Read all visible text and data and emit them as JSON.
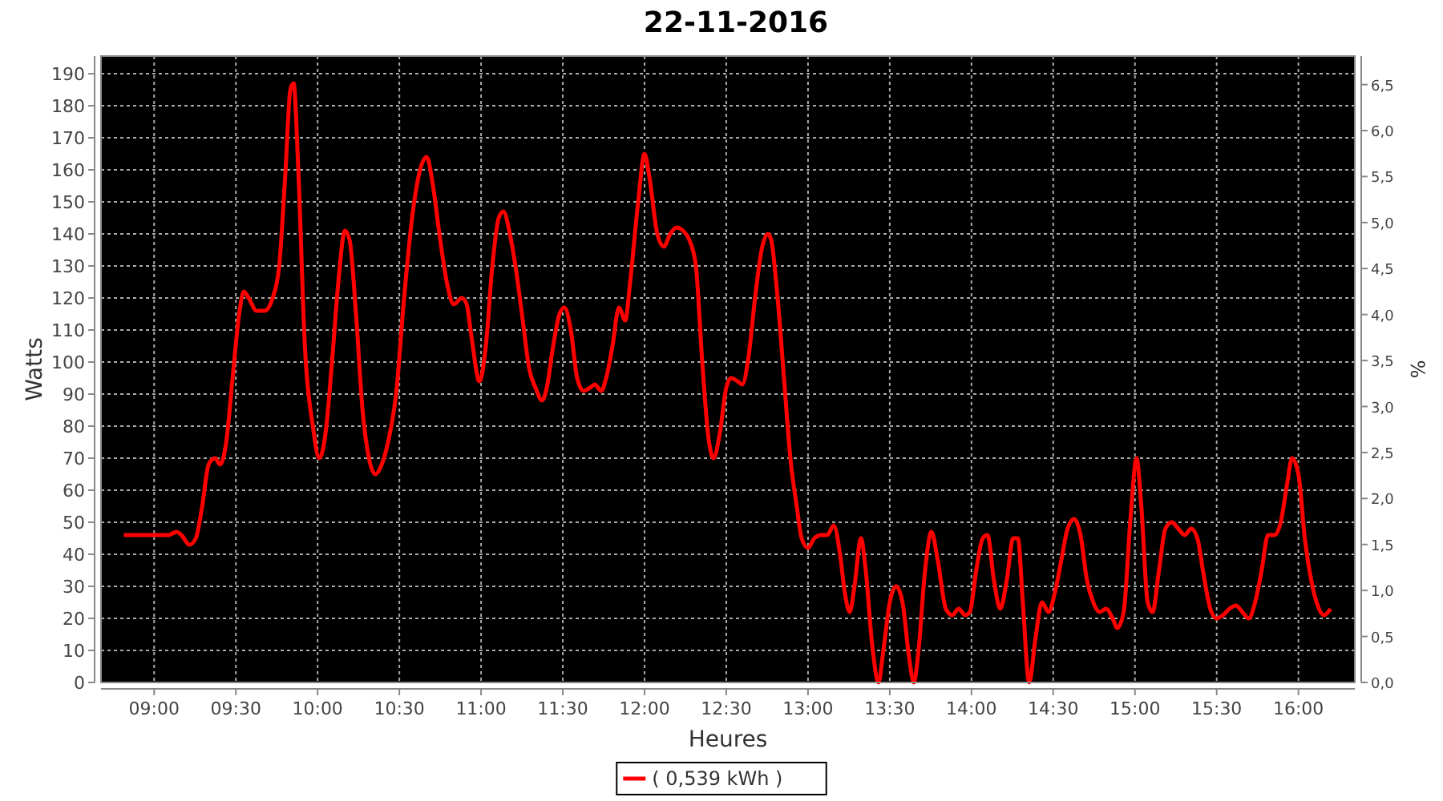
{
  "chart_data": {
    "type": "line",
    "title": "22-11-2016",
    "xlabel": "Heures",
    "ylabel": "Watts",
    "y2label": "%",
    "xlim": [
      8.675,
      16.345
    ],
    "ylim": [
      0,
      195.5
    ],
    "y2lim": [
      0,
      6.81
    ],
    "xticks": [
      {
        "value": 9,
        "label": "09:00"
      },
      {
        "value": 9.5,
        "label": "09:30"
      },
      {
        "value": 10,
        "label": "10:00"
      },
      {
        "value": 10.5,
        "label": "10:30"
      },
      {
        "value": 11,
        "label": "11:00"
      },
      {
        "value": 11.5,
        "label": "11:30"
      },
      {
        "value": 12,
        "label": "12:00"
      },
      {
        "value": 12.5,
        "label": "12:30"
      },
      {
        "value": 13,
        "label": "13:00"
      },
      {
        "value": 13.5,
        "label": "13:30"
      },
      {
        "value": 14,
        "label": "14:00"
      },
      {
        "value": 14.5,
        "label": "14:30"
      },
      {
        "value": 15,
        "label": "15:00"
      },
      {
        "value": 15.5,
        "label": "15:30"
      },
      {
        "value": 16,
        "label": "16:00"
      }
    ],
    "yticks": [
      0,
      10,
      20,
      30,
      40,
      50,
      60,
      70,
      80,
      90,
      100,
      110,
      120,
      130,
      140,
      150,
      160,
      170,
      180,
      190
    ],
    "y2ticks": [
      {
        "value": 0,
        "label": "0,0"
      },
      {
        "value": 0.5,
        "label": "0,5"
      },
      {
        "value": 1,
        "label": "1,0"
      },
      {
        "value": 1.5,
        "label": "1,5"
      },
      {
        "value": 2,
        "label": "2,0"
      },
      {
        "value": 2.5,
        "label": "2,5"
      },
      {
        "value": 3,
        "label": "3,0"
      },
      {
        "value": 3.5,
        "label": "3,5"
      },
      {
        "value": 4,
        "label": "4,0"
      },
      {
        "value": 4.5,
        "label": "4,5"
      },
      {
        "value": 5,
        "label": "5,0"
      },
      {
        "value": 5.5,
        "label": "5,5"
      },
      {
        "value": 6,
        "label": "6,0"
      },
      {
        "value": 6.5,
        "label": "6,5"
      }
    ],
    "grid": true,
    "legend": "bottom",
    "marker": "none",
    "line_style": "solid",
    "series": [
      {
        "name": "( 0,539 kWh )",
        "color": "#ff0000",
        "x": [
          8.814,
          8.941,
          9.088,
          9.137,
          9.167,
          9.216,
          9.255,
          9.294,
          9.333,
          9.373,
          9.402,
          9.441,
          9.48,
          9.52,
          9.549,
          9.578,
          9.627,
          9.676,
          9.725,
          9.765,
          9.804,
          9.833,
          9.853,
          9.882,
          9.922,
          9.971,
          10.01,
          10.049,
          10.088,
          10.127,
          10.167,
          10.196,
          10.235,
          10.275,
          10.314,
          10.353,
          10.392,
          10.431,
          10.48,
          10.529,
          10.578,
          10.627,
          10.667,
          10.706,
          10.745,
          10.794,
          10.833,
          10.882,
          10.912,
          10.941,
          10.99,
          11.029,
          11.069,
          11.108,
          11.137,
          11.176,
          11.216,
          11.255,
          11.294,
          11.333,
          11.373,
          11.402,
          11.441,
          11.48,
          11.51,
          11.549,
          11.588,
          11.627,
          11.667,
          11.696,
          11.735,
          11.765,
          11.804,
          11.843,
          11.882,
          11.912,
          11.961,
          12.0,
          12.029,
          12.078,
          12.118,
          12.157,
          12.196,
          12.235,
          12.275,
          12.314,
          12.353,
          12.392,
          12.422,
          12.461,
          12.5,
          12.529,
          12.569,
          12.598,
          12.637,
          12.676,
          12.716,
          12.755,
          12.775,
          12.814,
          12.853,
          12.892,
          12.931,
          12.961,
          13.0,
          13.039,
          13.078,
          13.118,
          13.157,
          13.196,
          13.225,
          13.255,
          13.284,
          13.324,
          13.353,
          13.392,
          13.431,
          13.461,
          13.5,
          13.539,
          13.578,
          13.618,
          13.647,
          13.676,
          13.716,
          13.755,
          13.794,
          13.843,
          13.882,
          13.922,
          13.961,
          13.99,
          14.029,
          14.069,
          14.098,
          14.137,
          14.176,
          14.216,
          14.255,
          14.284,
          14.314,
          14.353,
          14.392,
          14.431,
          14.471,
          14.51,
          14.549,
          14.588,
          14.627,
          14.667,
          14.706,
          14.745,
          14.784,
          14.824,
          14.863,
          14.892,
          14.931,
          14.971,
          15.01,
          15.039,
          15.078,
          15.108,
          15.147,
          15.186,
          15.225,
          15.265,
          15.304,
          15.343,
          15.382,
          15.422,
          15.461,
          15.5,
          15.539,
          15.578,
          15.618,
          15.657,
          15.696,
          15.735,
          15.775,
          15.814,
          15.853,
          15.892,
          15.931,
          15.961,
          16.0,
          16.039,
          16.078,
          16.118,
          16.157,
          16.196
        ],
        "values": [
          46,
          46,
          46,
          47,
          46,
          43,
          45,
          55,
          68,
          70,
          68,
          75,
          95,
          115,
          122,
          120,
          116,
          116,
          120,
          130,
          160,
          185,
          187,
          160,
          105,
          80,
          70,
          78,
          100,
          125,
          141,
          138,
          115,
          85,
          70,
          65,
          68,
          75,
          90,
          120,
          145,
          160,
          164,
          155,
          140,
          124,
          118,
          120,
          118,
          108,
          94,
          105,
          130,
          145,
          147,
          140,
          128,
          113,
          98,
          92,
          88,
          92,
          105,
          115,
          117,
          110,
          95,
          91,
          92,
          93,
          91,
          95,
          105,
          117,
          113,
          125,
          150,
          165,
          158,
          140,
          136,
          140,
          142,
          141,
          138,
          130,
          100,
          76,
          70,
          78,
          92,
          95,
          94,
          93,
          102,
          120,
          135,
          140,
          138,
          120,
          95,
          70,
          55,
          45,
          42,
          45,
          46,
          46,
          49,
          40,
          28,
          22,
          30,
          45,
          35,
          12,
          0,
          10,
          25,
          30,
          25,
          8,
          0,
          10,
          35,
          47,
          38,
          23,
          21,
          23,
          21,
          22,
          35,
          45,
          46,
          32,
          23,
          32,
          45,
          45,
          25,
          0,
          14,
          25,
          22,
          28,
          38,
          48,
          51,
          46,
          32,
          25,
          22,
          23,
          20,
          17,
          22,
          50,
          70,
          55,
          25,
          22,
          35,
          48,
          50,
          48,
          46,
          48,
          45,
          33,
          23,
          20,
          21,
          23,
          24,
          22,
          20,
          25,
          35,
          46,
          46,
          50,
          62,
          70,
          65,
          45,
          32,
          24,
          21,
          23
        ]
      }
    ]
  }
}
